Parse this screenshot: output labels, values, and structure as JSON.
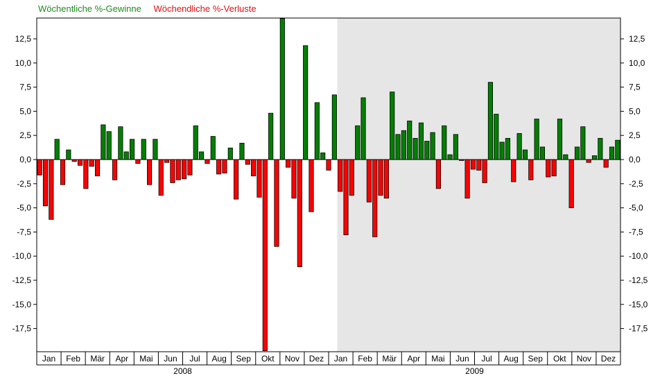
{
  "chart_data": {
    "type": "bar",
    "legend": [
      {
        "label": "Wöchentliche %-Gewinne",
        "color": "#1f8a1f"
      },
      {
        "label": "Wöchendliche %-Verluste",
        "color": "#e01010"
      }
    ],
    "colors": {
      "gain": "#008000",
      "loss": "#ff0000",
      "bar_outline": "#000000",
      "shade": "#e6e6e6"
    },
    "ylim": [
      -19.8,
      14.6
    ],
    "yticks": [
      12.5,
      10.0,
      7.5,
      5.0,
      2.5,
      0.0,
      -2.5,
      -5.0,
      -7.5,
      -10.0,
      -12.5,
      -15.0,
      -17.5
    ],
    "ytick_labels": [
      "12,5",
      "10,0",
      "7,5",
      "5,0",
      "2,5",
      "0,0",
      "-2,5",
      "-5,0",
      "-7,5",
      "-10,0",
      "-12,5",
      "-15,0",
      "-17,5"
    ],
    "month_labels": [
      "Jan",
      "Feb",
      "Mär",
      "Apr",
      "Mai",
      "Jun",
      "Jul",
      "Aug",
      "Sep",
      "Okt",
      "Nov",
      "Dez",
      "Jan",
      "Feb",
      "Mär",
      "Apr",
      "Mai",
      "Jun",
      "Jul",
      "Aug",
      "Sep",
      "Okt",
      "Nov",
      "Dez"
    ],
    "year_labels": [
      "2008",
      "2009"
    ],
    "shaded_from_week": 52,
    "grid": false,
    "series": [
      {
        "values": [
          -1.6,
          -4.8,
          -6.2,
          2.1,
          -2.6,
          1.0,
          -0.2,
          -0.6,
          -3.0,
          -0.7,
          -1.7,
          3.6,
          2.9,
          -2.1,
          3.4,
          0.8,
          2.1,
          -0.4,
          2.1,
          -2.6,
          2.1,
          -3.7,
          -0.3,
          -2.4,
          -2.1,
          -2.0,
          -1.6,
          3.5,
          0.8,
          -0.4,
          2.4,
          -1.5,
          -1.4,
          1.2,
          -4.1,
          1.7,
          -0.5,
          -1.7,
          -3.9,
          -19.8,
          4.8,
          -9.0,
          14.6,
          -0.8,
          -4.0,
          -11.1,
          11.8,
          -5.4,
          5.9,
          0.7,
          -1.1,
          6.7,
          -3.3,
          -7.8,
          -3.7,
          3.5,
          6.4,
          -4.4,
          -8.0,
          -3.7,
          -4.0,
          7.0,
          2.6,
          3.0,
          4.0,
          2.2,
          3.8,
          1.9,
          2.8,
          -3.0,
          3.5,
          0.5,
          2.6,
          -0.1,
          -4.0,
          -1.0,
          -1.1,
          -2.4,
          8.0,
          4.7,
          1.8,
          2.2,
          -2.3,
          2.7,
          1.0,
          -2.1,
          4.2,
          1.3,
          -1.8,
          -1.7,
          4.2,
          0.5,
          -5.0,
          1.3,
          3.4,
          -0.3,
          0.4,
          2.2,
          -0.8,
          1.3,
          2.0
        ]
      }
    ]
  }
}
